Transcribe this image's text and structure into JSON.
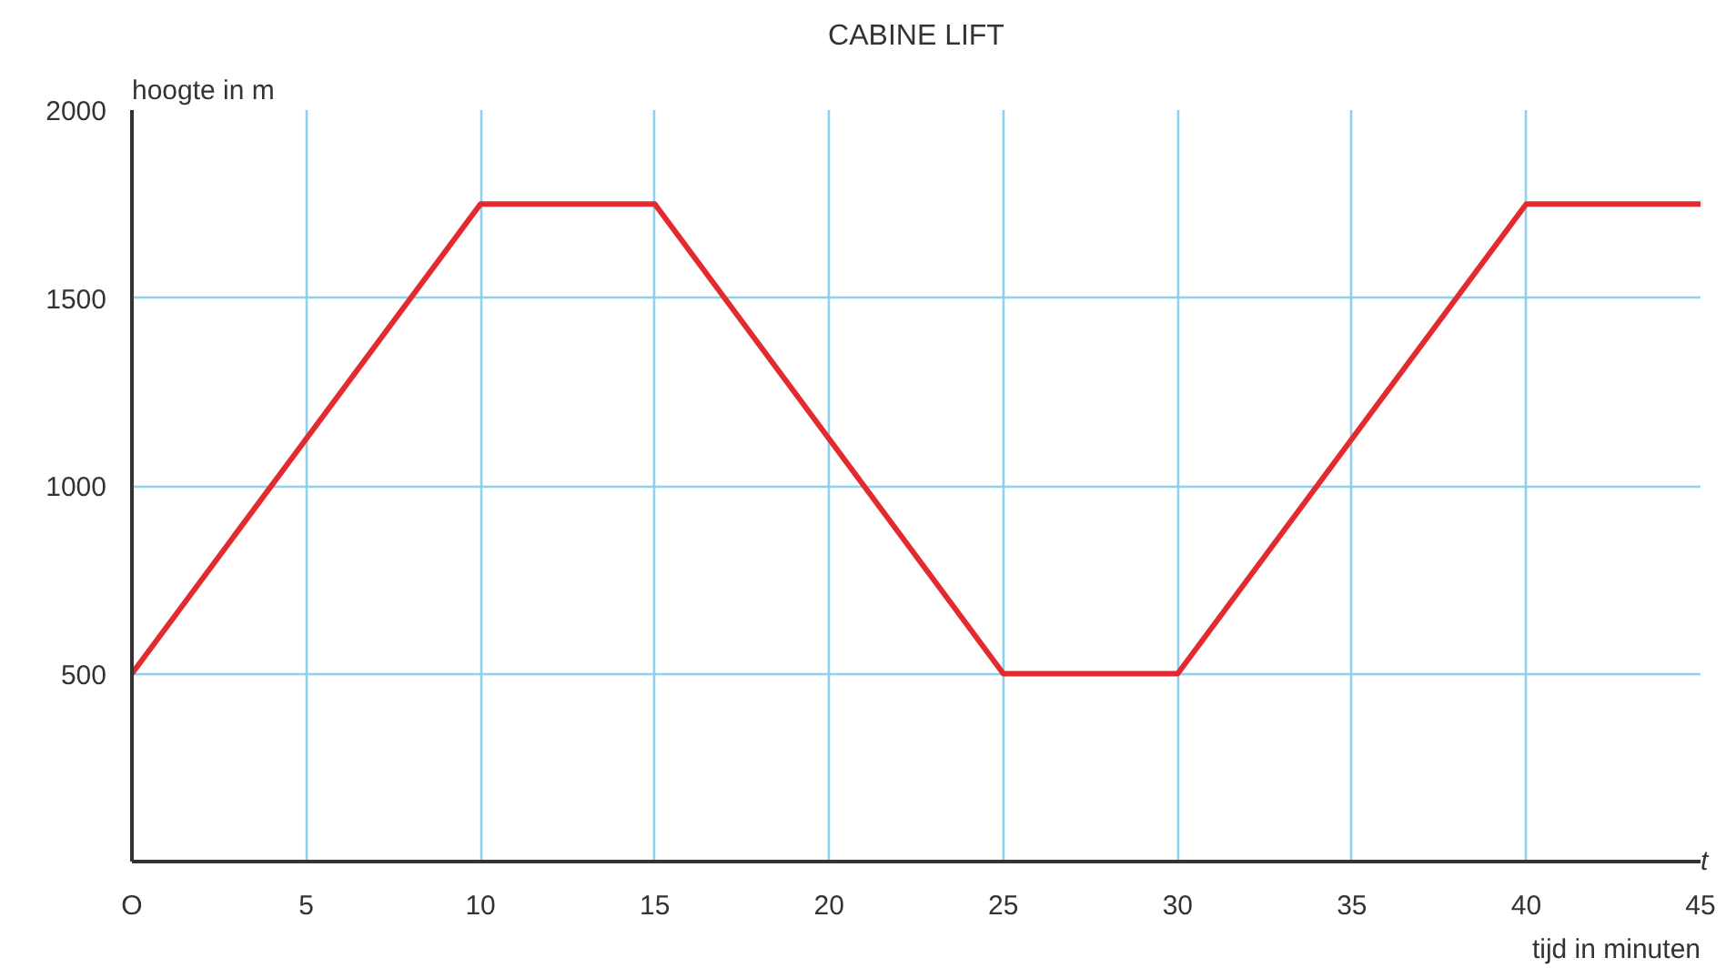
{
  "chart_data": {
    "type": "line",
    "title": "CABINE LIFT",
    "xlabel": "tijd in minuten",
    "ylabel": "hoogte in m",
    "annotations": [
      "t"
    ],
    "x": [
      0,
      10,
      15,
      25,
      30,
      40,
      45
    ],
    "series": [
      {
        "color": "#e32b2f",
        "values": [
          500,
          1750,
          1750,
          500,
          500,
          1750,
          1750
        ]
      }
    ],
    "xlim": [
      0,
      45
    ],
    "ylim": [
      0,
      2000
    ],
    "xticks": [
      {
        "value": 0,
        "label": "O"
      },
      5,
      10,
      15,
      20,
      25,
      30,
      35,
      40,
      45
    ],
    "yticks": [
      500,
      1000,
      1500,
      2000
    ],
    "grid": true,
    "marker": "none",
    "line_style": "solid"
  }
}
